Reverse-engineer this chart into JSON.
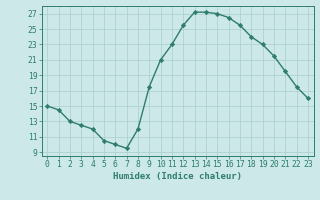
{
  "x": [
    0,
    1,
    2,
    3,
    4,
    5,
    6,
    7,
    8,
    9,
    10,
    11,
    12,
    13,
    14,
    15,
    16,
    17,
    18,
    19,
    20,
    21,
    22,
    23
  ],
  "y": [
    15,
    14.5,
    13,
    12.5,
    12,
    10.5,
    10,
    9.5,
    12,
    17.5,
    21,
    23,
    25.5,
    27.2,
    27.2,
    27,
    26.5,
    25.5,
    24,
    23,
    21.5,
    19.5,
    17.5,
    16
  ],
  "line_color": "#2e7d6e",
  "marker": "D",
  "markersize": 2.2,
  "linewidth": 1.0,
  "xlabel": "Humidex (Indice chaleur)",
  "ylabel": "",
  "xlim": [
    -0.5,
    23.5
  ],
  "ylim": [
    8.5,
    28
  ],
  "yticks": [
    9,
    11,
    13,
    15,
    17,
    19,
    21,
    23,
    25,
    27
  ],
  "xticks": [
    0,
    1,
    2,
    3,
    4,
    5,
    6,
    7,
    8,
    9,
    10,
    11,
    12,
    13,
    14,
    15,
    16,
    17,
    18,
    19,
    20,
    21,
    22,
    23
  ],
  "bg_color": "#cce8e8",
  "grid_color": "#aacece",
  "tick_color": "#2e7d6e",
  "label_color": "#2e7d6e",
  "xlabel_fontsize": 6.5,
  "tick_fontsize": 5.8
}
